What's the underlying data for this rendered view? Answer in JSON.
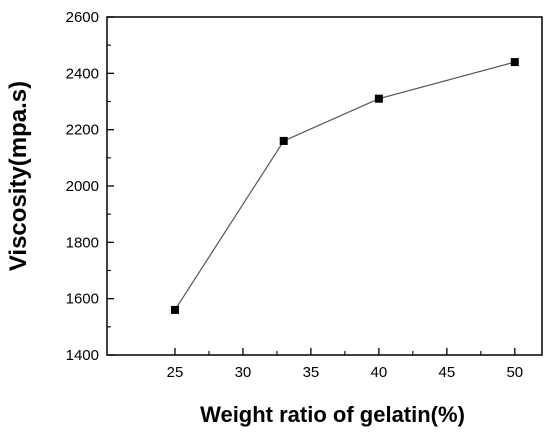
{
  "chart_data": {
    "type": "line",
    "xlabel": "Weight ratio of gelatin(%)",
    "ylabel": "Viscosity(mpa.s)",
    "xlim": [
      20,
      52
    ],
    "ylim": [
      1400,
      2600
    ],
    "xticks": [
      25,
      30,
      35,
      40,
      45,
      50
    ],
    "yticks": [
      1400,
      1600,
      1800,
      2000,
      2200,
      2400,
      2600
    ],
    "grid": false,
    "marker": "square",
    "line_color": "#555555",
    "marker_color": "#000000",
    "series": [
      {
        "x": [
          25,
          33,
          40,
          50
        ],
        "y": [
          1560,
          2160,
          2310,
          2440
        ]
      }
    ]
  }
}
